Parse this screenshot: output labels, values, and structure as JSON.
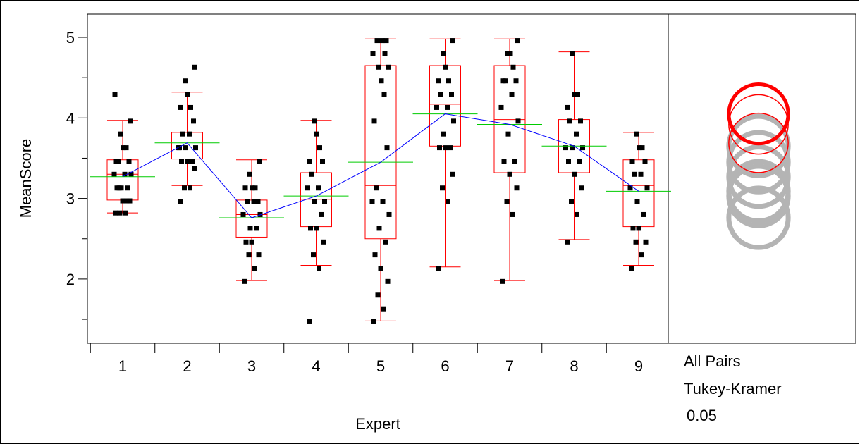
{
  "chart_data": {
    "type": "box",
    "xlabel": "Expert",
    "ylabel": "MeanScore",
    "categories": [
      "1",
      "2",
      "3",
      "4",
      "5",
      "6",
      "7",
      "8",
      "9"
    ],
    "yticks": [
      "2",
      "3",
      "4",
      "5"
    ],
    "ylim": [
      1.23,
      5.25
    ],
    "grand_mean": 3.43,
    "means": [
      3.27,
      3.69,
      2.76,
      3.03,
      3.45,
      4.05,
      3.92,
      3.65,
      3.09
    ],
    "boxes": [
      {
        "min": 2.82,
        "q1": 2.98,
        "median": 3.3,
        "q3": 3.48,
        "max": 3.97
      },
      {
        "min": 3.16,
        "q1": 3.49,
        "median": 3.64,
        "q3": 3.82,
        "max": 4.32
      },
      {
        "min": 1.98,
        "q1": 2.52,
        "median": 2.8,
        "q3": 2.98,
        "max": 3.48
      },
      {
        "min": 2.17,
        "q1": 2.65,
        "median": 2.99,
        "q3": 3.32,
        "max": 3.97
      },
      {
        "min": 1.48,
        "q1": 2.5,
        "median": 3.16,
        "q3": 4.65,
        "max": 4.98
      },
      {
        "min": 2.15,
        "q1": 3.65,
        "median": 4.17,
        "q3": 4.65,
        "max": 4.98
      },
      {
        "min": 1.98,
        "q1": 3.32,
        "median": 3.98,
        "q3": 4.65,
        "max": 4.98
      },
      {
        "min": 2.49,
        "q1": 3.32,
        "median": 3.64,
        "q3": 3.98,
        "max": 4.82
      },
      {
        "min": 2.17,
        "q1": 2.65,
        "median": 3.16,
        "q3": 3.48,
        "max": 3.82
      }
    ],
    "points": [
      [
        2.82,
        2.82,
        2.82,
        2.97,
        2.97,
        3.13,
        3.13,
        3.13,
        3.3,
        3.3,
        3.3,
        3.46,
        3.46,
        3.46,
        3.63,
        3.63,
        3.8,
        3.96,
        4.29,
        2.97,
        3.13
      ],
      [
        2.96,
        3.13,
        3.13,
        3.37,
        3.46,
        3.46,
        3.46,
        3.63,
        3.63,
        3.63,
        3.8,
        3.8,
        3.96,
        4.13,
        4.13,
        4.29,
        4.46,
        4.63,
        3.63
      ],
      [
        1.97,
        2.13,
        2.3,
        2.3,
        2.46,
        2.46,
        2.63,
        2.63,
        2.8,
        2.8,
        2.96,
        2.96,
        2.96,
        3.13,
        3.13,
        3.13,
        3.3,
        3.46
      ],
      [
        1.47,
        2.13,
        2.3,
        2.46,
        2.63,
        2.63,
        2.8,
        2.96,
        2.96,
        3.13,
        3.13,
        3.3,
        3.46,
        3.46,
        3.63,
        3.8,
        3.96
      ],
      [
        1.47,
        1.63,
        1.8,
        1.97,
        2.13,
        2.3,
        2.46,
        2.63,
        2.8,
        2.96,
        2.96,
        3.13,
        3.63,
        3.96,
        4.29,
        4.46,
        4.63,
        4.63,
        4.8,
        4.8,
        4.96,
        4.96,
        4.96
      ],
      [
        2.13,
        2.96,
        3.13,
        3.3,
        3.63,
        3.63,
        3.63,
        3.8,
        3.96,
        4.13,
        4.13,
        4.29,
        4.29,
        4.46,
        4.46,
        4.63,
        4.8,
        4.96
      ],
      [
        1.97,
        2.8,
        2.96,
        3.13,
        3.3,
        3.46,
        3.46,
        3.8,
        3.96,
        4.13,
        4.29,
        4.46,
        4.46,
        4.46,
        4.63,
        4.8,
        4.8,
        4.96
      ],
      [
        2.46,
        2.8,
        2.96,
        3.13,
        3.3,
        3.46,
        3.46,
        3.63,
        3.63,
        3.63,
        3.8,
        3.96,
        3.96,
        4.13,
        4.29,
        4.29,
        4.8
      ],
      [
        2.13,
        2.3,
        2.46,
        2.46,
        2.63,
        2.63,
        2.8,
        2.96,
        3.13,
        3.13,
        3.3,
        3.3,
        3.46,
        3.46,
        3.63,
        3.63,
        3.8
      ]
    ],
    "comparison_circles": [
      {
        "center": 4.05,
        "radius": 0.38,
        "color": "#ff0000",
        "thick": true
      },
      {
        "center": 3.92,
        "radius": 0.38,
        "color": "#ff0000",
        "thick": false
      },
      {
        "center": 3.69,
        "radius": 0.38,
        "color": "#ff0000",
        "thick": false
      },
      {
        "center": 3.65,
        "radius": 0.38,
        "color": "#b4b4b4",
        "thick": true
      },
      {
        "center": 3.45,
        "radius": 0.38,
        "color": "#b4b4b4",
        "thick": true
      },
      {
        "center": 3.27,
        "radius": 0.38,
        "color": "#b4b4b4",
        "thick": true
      },
      {
        "center": 3.09,
        "radius": 0.38,
        "color": "#b4b4b4",
        "thick": true
      },
      {
        "center": 3.03,
        "radius": 0.38,
        "color": "#b4b4b4",
        "thick": true
      },
      {
        "center": 2.76,
        "radius": 0.38,
        "color": "#b4b4b4",
        "thick": true
      }
    ],
    "colors": {
      "box": "#ff0000",
      "mean_line": "#0000ff",
      "mean_tick": "#00cc00",
      "grand_mean": "#a0a0a0",
      "points": "#000000",
      "frame": "#000000"
    },
    "comparison_label": {
      "line1": "All Pairs",
      "line2": "Tukey-Kramer",
      "line3": "0.05"
    }
  }
}
